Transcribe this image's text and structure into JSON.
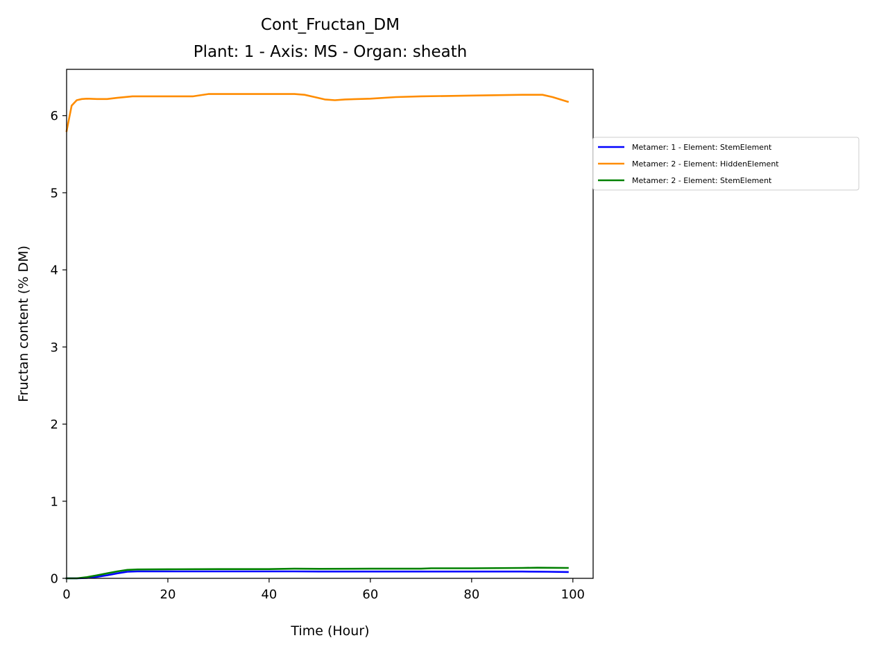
{
  "chart_data": {
    "type": "line",
    "title": "Cont_Fructan_DM",
    "subtitle": "Plant: 1 - Axis: MS - Organ: sheath",
    "xlabel": "Time (Hour)",
    "ylabel": "Fructan content (% DM)",
    "xlim": [
      0,
      104
    ],
    "ylim": [
      0,
      6.6
    ],
    "xticks": [
      0,
      20,
      40,
      60,
      80,
      100
    ],
    "yticks": [
      0,
      1,
      2,
      3,
      4,
      5,
      6
    ],
    "grid": false,
    "legend_position": "right, outside axes",
    "series": [
      {
        "name": "Metamer: 1 - Element: StemElement",
        "color": "#0000ff",
        "x": [
          0,
          2,
          4,
          6,
          8,
          10,
          12,
          14,
          20,
          30,
          40,
          45,
          50,
          60,
          70,
          80,
          90,
          95,
          99
        ],
        "y": [
          0,
          0,
          0.005,
          0.02,
          0.04,
          0.065,
          0.085,
          0.09,
          0.09,
          0.09,
          0.09,
          0.09,
          0.088,
          0.088,
          0.088,
          0.088,
          0.088,
          0.085,
          0.082
        ]
      },
      {
        "name": "Metamer: 2 - Element: HiddenElement",
        "color": "#ff8c00",
        "x": [
          0,
          1,
          2,
          3,
          4,
          6,
          8,
          10,
          13,
          20,
          25,
          28,
          35,
          40,
          45,
          47,
          49,
          51,
          53,
          55,
          60,
          65,
          70,
          75,
          80,
          90,
          94,
          96,
          99
        ],
        "y": [
          5.8,
          6.13,
          6.2,
          6.215,
          6.22,
          6.215,
          6.215,
          6.23,
          6.25,
          6.25,
          6.25,
          6.28,
          6.28,
          6.28,
          6.28,
          6.27,
          6.24,
          6.21,
          6.2,
          6.21,
          6.22,
          6.24,
          6.25,
          6.255,
          6.26,
          6.27,
          6.27,
          6.24,
          6.18
        ]
      },
      {
        "name": "Metamer: 2 - Element: StemElement",
        "color": "#008000",
        "x": [
          0,
          2,
          4,
          6,
          8,
          10,
          12,
          14,
          20,
          30,
          40,
          45,
          50,
          60,
          70,
          72,
          80,
          90,
          93,
          99
        ],
        "y": [
          0,
          0,
          0.015,
          0.04,
          0.065,
          0.09,
          0.11,
          0.115,
          0.118,
          0.12,
          0.12,
          0.125,
          0.123,
          0.125,
          0.125,
          0.13,
          0.13,
          0.135,
          0.138,
          0.135
        ]
      }
    ]
  }
}
